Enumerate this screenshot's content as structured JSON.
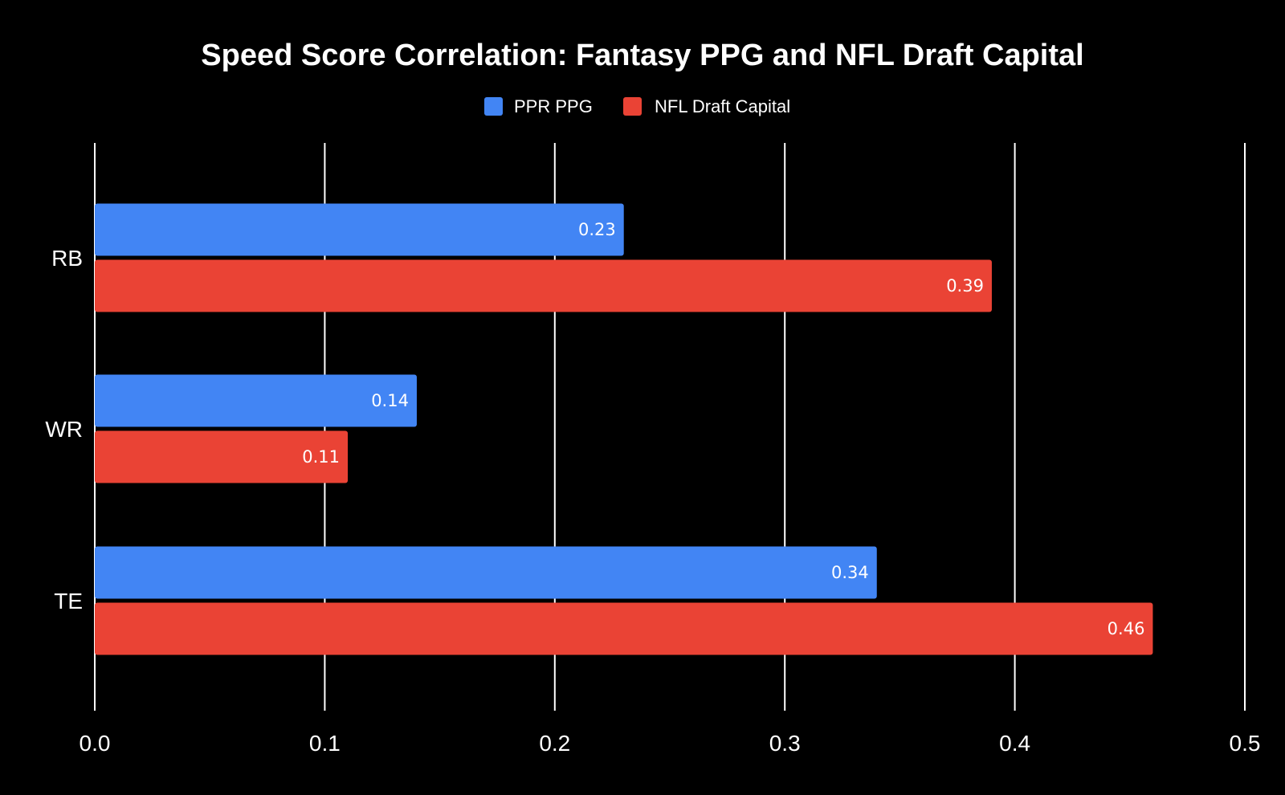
{
  "chart_data": {
    "type": "bar",
    "orientation": "horizontal",
    "title": "Speed Score Correlation: Fantasy PPG and NFL Draft Capital",
    "categories": [
      "RB",
      "WR",
      "TE"
    ],
    "series": [
      {
        "name": "PPR PPG",
        "color": "#4285f4",
        "values": [
          0.23,
          0.14,
          0.34
        ],
        "labels": [
          "0.23",
          "0.14",
          "0.34"
        ]
      },
      {
        "name": "NFL Draft Capital",
        "color": "#ea4335",
        "values": [
          0.39,
          0.11,
          0.46
        ],
        "labels": [
          "0.39",
          "0.11",
          "0.46"
        ]
      }
    ],
    "xlim": [
      0,
      0.5
    ],
    "xticks": [
      0,
      0.1,
      0.2,
      0.3,
      0.4,
      0.5
    ],
    "xtick_labels": [
      "0.0",
      "0.1",
      "0.2",
      "0.3",
      "0.4",
      "0.5"
    ],
    "xlabel": "",
    "ylabel": "",
    "grid": true,
    "legend_position": "top-center",
    "background": "#000000",
    "text_color": "#ffffff"
  }
}
